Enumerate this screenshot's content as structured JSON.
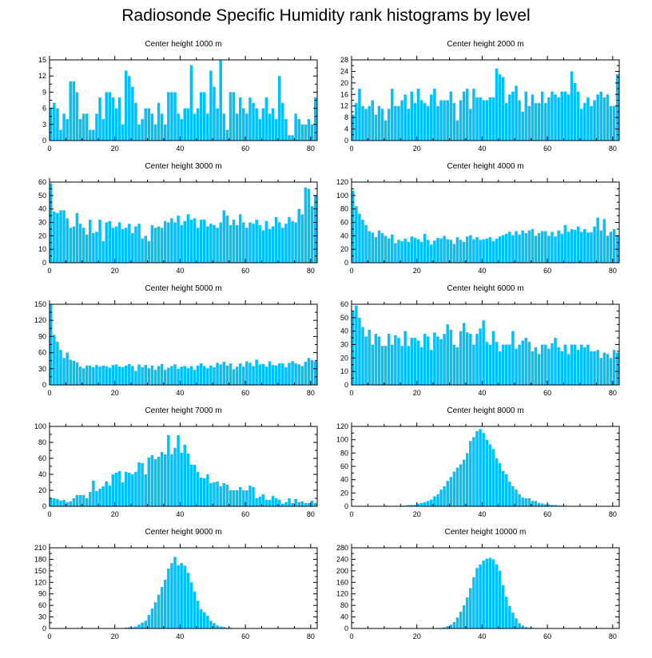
{
  "figure": {
    "title": "Radiosonde Specific Humidity rank histograms by level",
    "bar_color": "#00c0ff"
  },
  "chart_data": [
    {
      "type": "bar",
      "title": "Center height 1000 m",
      "xlim": [
        0,
        82
      ],
      "xticks": [
        0,
        20,
        40,
        60,
        80
      ],
      "ylim": [
        0,
        15
      ],
      "yticks": [
        0,
        3,
        6,
        9,
        12,
        15
      ],
      "values": [
        6,
        7,
        6,
        2,
        5,
        4,
        11,
        11,
        9,
        4,
        5,
        5,
        2,
        2,
        5,
        8,
        4,
        9,
        9,
        8,
        6,
        8,
        3,
        13,
        12,
        10,
        7,
        3,
        4,
        6,
        6,
        5,
        3,
        7,
        5,
        3,
        9,
        9,
        9,
        5,
        4,
        6,
        6,
        14,
        5,
        6,
        9,
        9,
        5,
        13,
        10,
        6,
        15,
        5,
        2,
        9,
        9,
        5,
        8,
        6,
        5,
        8,
        7,
        6,
        4,
        6,
        8,
        5,
        6,
        4,
        12,
        7,
        4,
        1,
        1,
        5,
        4,
        3,
        3,
        4,
        3,
        8
      ]
    },
    {
      "type": "bar",
      "title": "Center height 2000 m",
      "xlim": [
        0,
        82
      ],
      "xticks": [
        0,
        20,
        40,
        60,
        80
      ],
      "ylim": [
        0,
        28
      ],
      "yticks": [
        0,
        4,
        8,
        12,
        16,
        20,
        24,
        28
      ],
      "values": [
        9,
        13,
        18,
        12,
        11,
        12,
        14,
        9,
        12,
        11,
        7,
        11,
        18,
        12,
        12,
        14,
        16,
        11,
        17,
        13,
        18,
        14,
        13,
        12,
        16,
        18,
        12,
        14,
        14,
        14,
        17,
        13,
        7,
        14,
        17,
        18,
        11,
        18,
        15,
        15,
        14,
        14,
        15,
        15,
        25,
        23,
        22,
        13,
        16,
        17,
        19,
        14,
        10,
        17,
        12,
        16,
        13,
        13,
        17,
        13,
        15,
        17,
        16,
        15,
        17,
        17,
        16,
        24,
        20,
        17,
        11,
        13,
        15,
        12,
        14,
        16,
        17,
        15,
        16,
        12,
        12,
        23
      ]
    },
    {
      "type": "bar",
      "title": "Center height 3000 m",
      "xlim": [
        0,
        82
      ],
      "xticks": [
        0,
        20,
        40,
        60,
        80
      ],
      "ylim": [
        0,
        60
      ],
      "yticks": [
        0,
        10,
        20,
        30,
        40,
        50,
        60
      ],
      "values": [
        59,
        38,
        37,
        39,
        39,
        33,
        26,
        27,
        37,
        29,
        26,
        21,
        32,
        22,
        23,
        32,
        16,
        30,
        31,
        26,
        27,
        30,
        25,
        26,
        29,
        22,
        27,
        29,
        18,
        20,
        16,
        28,
        26,
        27,
        26,
        31,
        30,
        33,
        30,
        35,
        28,
        31,
        36,
        32,
        33,
        26,
        32,
        32,
        27,
        29,
        28,
        26,
        30,
        39,
        35,
        28,
        32,
        28,
        36,
        30,
        26,
        30,
        29,
        32,
        28,
        24,
        31,
        25,
        27,
        34,
        30,
        26,
        29,
        34,
        31,
        30,
        40,
        36,
        56,
        55,
        42,
        50
      ]
    },
    {
      "type": "bar",
      "title": "Center height 4000 m",
      "xlim": [
        0,
        82
      ],
      "xticks": [
        0,
        20,
        40,
        60,
        80
      ],
      "ylim": [
        0,
        120
      ],
      "yticks": [
        0,
        20,
        40,
        60,
        80,
        100,
        120
      ],
      "values": [
        107,
        84,
        73,
        64,
        56,
        47,
        45,
        38,
        48,
        44,
        40,
        36,
        42,
        29,
        34,
        32,
        36,
        31,
        39,
        37,
        35,
        31,
        43,
        34,
        27,
        33,
        37,
        36,
        40,
        35,
        34,
        28,
        38,
        34,
        31,
        39,
        41,
        35,
        38,
        34,
        35,
        36,
        38,
        32,
        36,
        39,
        41,
        43,
        46,
        41,
        47,
        42,
        48,
        44,
        48,
        50,
        40,
        44,
        47,
        47,
        40,
        46,
        39,
        48,
        43,
        56,
        46,
        50,
        49,
        54,
        46,
        50,
        45,
        45,
        54,
        67,
        48,
        65,
        40,
        46,
        50,
        41
      ]
    },
    {
      "type": "bar",
      "title": "Center height 5000 m",
      "xlim": [
        0,
        82
      ],
      "xticks": [
        0,
        20,
        40,
        60,
        80
      ],
      "ylim": [
        0,
        150
      ],
      "yticks": [
        0,
        30,
        60,
        90,
        120,
        150
      ],
      "values": [
        150,
        93,
        80,
        65,
        50,
        60,
        47,
        45,
        42,
        34,
        31,
        36,
        36,
        33,
        37,
        34,
        36,
        35,
        32,
        37,
        38,
        34,
        33,
        36,
        39,
        35,
        26,
        38,
        33,
        37,
        31,
        36,
        28,
        35,
        39,
        28,
        32,
        35,
        38,
        30,
        34,
        35,
        31,
        35,
        28,
        36,
        40,
        35,
        31,
        36,
        33,
        41,
        38,
        43,
        36,
        40,
        29,
        34,
        40,
        34,
        44,
        41,
        35,
        47,
        38,
        39,
        34,
        44,
        37,
        36,
        40,
        40,
        33,
        41,
        44,
        40,
        38,
        35,
        43,
        50,
        46,
        44
      ]
    },
    {
      "type": "bar",
      "title": "Center height 6000 m",
      "xlim": [
        0,
        82
      ],
      "xticks": [
        0,
        20,
        40,
        60,
        80
      ],
      "ylim": [
        0,
        60
      ],
      "yticks": [
        0,
        10,
        20,
        30,
        40,
        50,
        60
      ],
      "values": [
        55,
        59,
        50,
        43,
        36,
        41,
        30,
        38,
        36,
        29,
        29,
        38,
        30,
        37,
        35,
        29,
        40,
        29,
        35,
        35,
        33,
        28,
        38,
        36,
        26,
        39,
        36,
        34,
        38,
        45,
        41,
        30,
        28,
        40,
        46,
        39,
        38,
        30,
        38,
        42,
        48,
        32,
        30,
        40,
        32,
        25,
        30,
        30,
        30,
        40,
        27,
        30,
        33,
        35,
        32,
        25,
        28,
        23,
        30,
        30,
        27,
        31,
        35,
        28,
        25,
        30,
        23,
        30,
        30,
        26,
        30,
        28,
        30,
        25,
        25,
        26,
        20,
        24,
        23,
        20,
        26,
        24
      ]
    },
    {
      "type": "bar",
      "title": "Center height 7000 m",
      "xlim": [
        0,
        82
      ],
      "xticks": [
        0,
        20,
        40,
        60,
        80
      ],
      "ylim": [
        0,
        100
      ],
      "yticks": [
        0,
        20,
        40,
        60,
        80,
        100
      ],
      "values": [
        10,
        10,
        9,
        7,
        8,
        5,
        6,
        10,
        14,
        14,
        14,
        10,
        18,
        32,
        19,
        22,
        25,
        31,
        26,
        40,
        42,
        44,
        30,
        43,
        42,
        40,
        43,
        55,
        54,
        40,
        61,
        64,
        59,
        62,
        68,
        65,
        89,
        65,
        73,
        89,
        67,
        77,
        66,
        52,
        52,
        43,
        36,
        35,
        40,
        29,
        30,
        31,
        25,
        29,
        27,
        20,
        20,
        20,
        24,
        20,
        20,
        26,
        24,
        10,
        12,
        15,
        8,
        8,
        13,
        10,
        8,
        3,
        5,
        10,
        4,
        9,
        5,
        6,
        4,
        4,
        7,
        4
      ]
    },
    {
      "type": "bar",
      "title": "Center height 8000 m",
      "xlim": [
        0,
        82
      ],
      "xticks": [
        0,
        20,
        40,
        60,
        80
      ],
      "ylim": [
        0,
        120
      ],
      "yticks": [
        0,
        20,
        40,
        60,
        80,
        100,
        120
      ],
      "values": [
        0,
        0,
        0,
        0,
        0,
        0,
        0,
        0,
        0,
        0,
        1,
        0,
        0,
        0,
        0,
        1,
        1,
        2,
        2,
        2,
        4,
        5,
        6,
        8,
        10,
        15,
        18,
        25,
        30,
        38,
        44,
        52,
        58,
        63,
        70,
        80,
        98,
        104,
        113,
        116,
        110,
        100,
        93,
        86,
        72,
        65,
        53,
        48,
        37,
        30,
        25,
        18,
        13,
        12,
        12,
        8,
        8,
        5,
        4,
        3,
        3,
        2,
        2,
        1,
        1,
        1,
        0,
        0,
        0,
        0,
        0,
        0,
        0,
        0,
        0,
        0,
        0,
        0,
        0,
        0,
        0,
        0
      ]
    },
    {
      "type": "bar",
      "title": "Center height 9000 m",
      "xlim": [
        0,
        82
      ],
      "xticks": [
        0,
        20,
        40,
        60,
        80
      ],
      "ylim": [
        0,
        210
      ],
      "yticks": [
        0,
        30,
        60,
        90,
        120,
        150,
        180,
        210
      ],
      "values": [
        0,
        0,
        0,
        0,
        0,
        0,
        0,
        0,
        0,
        0,
        0,
        0,
        0,
        0,
        0,
        0,
        0,
        0,
        0,
        0,
        0,
        0,
        1,
        2,
        3,
        3,
        5,
        10,
        15,
        20,
        35,
        52,
        68,
        88,
        108,
        127,
        156,
        170,
        186,
        165,
        170,
        163,
        145,
        120,
        96,
        72,
        50,
        42,
        33,
        20,
        14,
        8,
        5,
        4,
        2,
        2,
        1,
        0,
        0,
        0,
        0,
        0,
        0,
        0,
        0,
        0,
        0,
        0,
        0,
        0,
        0,
        0,
        0,
        0,
        0,
        0,
        0,
        0,
        0,
        0,
        0,
        0
      ]
    },
    {
      "type": "bar",
      "title": "Center height 10000 m",
      "xlim": [
        0,
        82
      ],
      "xticks": [
        0,
        20,
        40,
        60,
        80
      ],
      "ylim": [
        0,
        280
      ],
      "yticks": [
        0,
        40,
        80,
        120,
        160,
        200,
        240,
        280
      ],
      "values": [
        0,
        0,
        0,
        0,
        0,
        0,
        0,
        0,
        0,
        0,
        0,
        0,
        0,
        0,
        0,
        0,
        0,
        0,
        0,
        0,
        0,
        0,
        0,
        0,
        0,
        0,
        1,
        2,
        4,
        8,
        13,
        22,
        38,
        58,
        80,
        108,
        140,
        178,
        210,
        222,
        236,
        242,
        245,
        240,
        222,
        200,
        150,
        110,
        78,
        55,
        35,
        18,
        10,
        5,
        3,
        2,
        1,
        0,
        0,
        0,
        0,
        0,
        0,
        0,
        0,
        0,
        0,
        0,
        0,
        0,
        0,
        0,
        0,
        0,
        0,
        0,
        0,
        0,
        0,
        0,
        0,
        0
      ]
    }
  ]
}
